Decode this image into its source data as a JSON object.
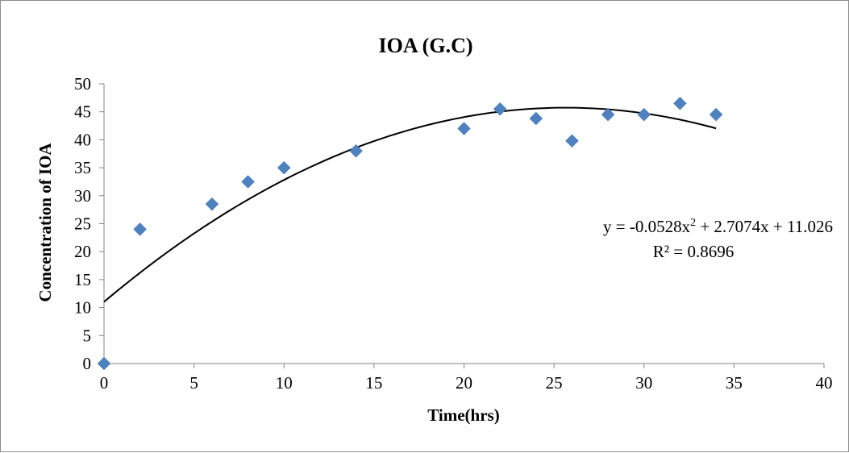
{
  "chart_data": {
    "type": "scatter",
    "title": "IOA (G.C)",
    "xlabel": "Time(hrs)",
    "ylabel": "Concentration of IOA",
    "xlim": [
      0,
      40
    ],
    "ylim": [
      0,
      50
    ],
    "x_ticks": [
      0,
      5,
      10,
      15,
      20,
      25,
      30,
      35,
      40
    ],
    "y_ticks": [
      0,
      5,
      10,
      15,
      20,
      25,
      30,
      35,
      40,
      45,
      50
    ],
    "grid": false,
    "marker": "diamond",
    "marker_color": "#4f81bd",
    "series": [
      {
        "x": [
          0,
          2,
          6,
          8,
          10,
          14,
          20,
          22,
          24,
          26,
          28,
          30,
          32,
          34
        ],
        "y": [
          0,
          24,
          28.5,
          32.5,
          35,
          38,
          42,
          45.5,
          43.8,
          39.8,
          44.5,
          44.5,
          46.5,
          44.5
        ]
      }
    ],
    "trendline": {
      "type": "polynomial",
      "order": 2,
      "coefficients": [
        -0.0528,
        2.7074,
        11.026
      ],
      "x_range": [
        0,
        34
      ],
      "color": "#000000",
      "equation_prefix": "y = -0.0528x",
      "equation_sup": "2",
      "equation_suffix": " + 2.7074x + 11.026",
      "r_squared_label": "R² = 0.8696"
    }
  }
}
